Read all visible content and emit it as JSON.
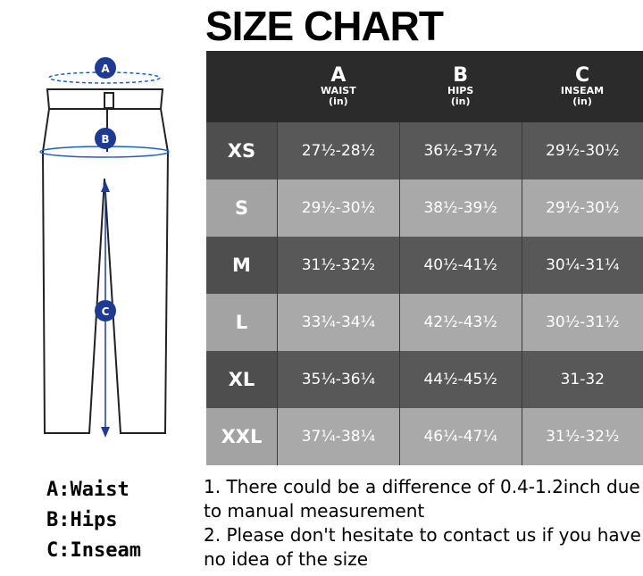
{
  "title": "SIZE CHART",
  "columns": [
    {
      "letter": "A",
      "name": "WAIST",
      "unit": "(in)"
    },
    {
      "letter": "B",
      "name": "HIPS",
      "unit": "(in)"
    },
    {
      "letter": "C",
      "name": "INSEAM",
      "unit": "(in)"
    }
  ],
  "rows": [
    {
      "size": "XS",
      "values": [
        "27½-28½",
        "36½-37½",
        "29½-30½"
      ]
    },
    {
      "size": "S",
      "values": [
        "29½-30½",
        "38½-39½",
        "29½-30½"
      ]
    },
    {
      "size": "M",
      "values": [
        "31½-32½",
        "40½-41½",
        "30¼-31¼"
      ]
    },
    {
      "size": "L",
      "values": [
        "33¼-34¼",
        "42½-43½",
        "30½-31½"
      ]
    },
    {
      "size": "XL",
      "values": [
        "35¼-36¼",
        "44½-45½",
        "31-32"
      ]
    },
    {
      "size": "XXL",
      "values": [
        "37¼-38¼",
        "46¼-47¼",
        "31½-32½"
      ]
    }
  ],
  "diagram": {
    "markers": [
      "A",
      "B",
      "C"
    ],
    "accent": "#1f3a93"
  },
  "legend": [
    "A:Waist",
    "B:Hips",
    "C:Inseam"
  ],
  "notes": [
    "1. There could be a difference of 0.4-1.2inch due to manual measurement",
    "2. Please don't hesitate to contact us if you have no idea of the size"
  ]
}
